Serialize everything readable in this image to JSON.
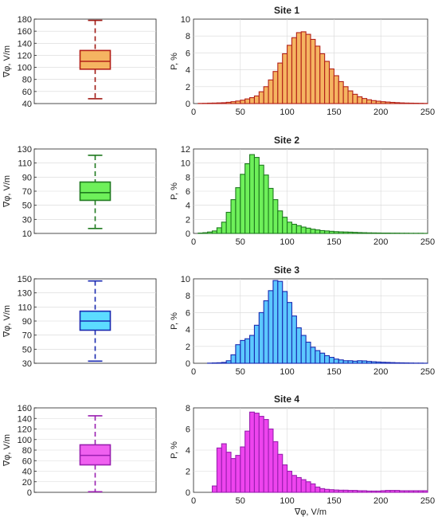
{
  "chart_data": [
    {
      "panel": 1,
      "type": "box",
      "ylabel": "∇φ, V/m",
      "ylim": [
        40,
        180
      ],
      "yticks": [
        40,
        60,
        80,
        100,
        120,
        140,
        160,
        180
      ],
      "color": "#f5b461",
      "edge": "#b32018",
      "whisker_color": "#a01a14",
      "stats": {
        "min": 48,
        "q1": 97,
        "median": 110,
        "q3": 128,
        "max": 178
      }
    },
    {
      "panel": 1,
      "type": "bar",
      "title": "Site 1",
      "ylabel": "P, %",
      "xlabel": "",
      "xlim": [
        0,
        250
      ],
      "ylim": [
        0,
        10
      ],
      "xticks": [
        0,
        50,
        100,
        150,
        200,
        250
      ],
      "yticks": [
        0,
        2,
        4,
        6,
        8,
        10
      ],
      "bin_width": 5,
      "color": "#f5b461",
      "edge": "#b32018",
      "values": [
        0,
        0.02,
        0.03,
        0.05,
        0.06,
        0.08,
        0.1,
        0.15,
        0.22,
        0.3,
        0.4,
        0.55,
        0.7,
        0.9,
        1.4,
        2.0,
        2.8,
        3.8,
        4.8,
        5.9,
        6.9,
        7.8,
        8.4,
        8.5,
        8.2,
        7.6,
        6.8,
        5.9,
        5.0,
        4.1,
        3.3,
        2.6,
        2.0,
        1.5,
        1.1,
        0.8,
        0.6,
        0.45,
        0.35,
        0.28,
        0.22,
        0.18,
        0.14,
        0.11,
        0.08,
        0.06,
        0.05,
        0.04,
        0.03,
        0.02
      ]
    },
    {
      "panel": 2,
      "type": "box",
      "ylabel": "∇φ, V/m",
      "ylim": [
        10,
        130
      ],
      "yticks": [
        10,
        30,
        50,
        70,
        90,
        110,
        130
      ],
      "color": "#6ef05a",
      "edge": "#1f7a1f",
      "whisker_color": "#1f7a1f",
      "stats": {
        "min": 17,
        "q1": 57,
        "median": 68,
        "q3": 83,
        "max": 121
      }
    },
    {
      "panel": 2,
      "type": "bar",
      "title": "Site 2",
      "ylabel": "P, %",
      "xlabel": "",
      "xlim": [
        0,
        250
      ],
      "ylim": [
        0,
        12
      ],
      "xticks": [
        0,
        50,
        100,
        150,
        200,
        250
      ],
      "yticks": [
        0,
        2,
        4,
        6,
        8,
        10,
        12
      ],
      "bin_width": 5,
      "color": "#6ef05a",
      "edge": "#1f7a1f",
      "values": [
        0,
        0.05,
        0.1,
        0.2,
        0.35,
        0.8,
        1.6,
        3.0,
        4.8,
        6.5,
        8.4,
        9.9,
        11.2,
        10.8,
        9.7,
        8.3,
        6.4,
        4.8,
        3.2,
        2.3,
        1.6,
        1.3,
        1.1,
        0.9,
        0.75,
        0.6,
        0.5,
        0.4,
        0.35,
        0.3,
        0.25,
        0.22,
        0.2,
        0.18,
        0.15,
        0.12,
        0.1,
        0.08,
        0.07,
        0.06,
        0.05,
        0.05,
        0.04,
        0.04,
        0.03,
        0.03,
        0.02,
        0.02,
        0.02,
        0.01
      ]
    },
    {
      "panel": 3,
      "type": "box",
      "ylabel": "∇φ, V/m",
      "ylim": [
        30,
        150
      ],
      "yticks": [
        30,
        50,
        70,
        90,
        110,
        130,
        150
      ],
      "color": "#5cdcff",
      "edge": "#1a2ab0",
      "whisker_color": "#1a2ab0",
      "stats": {
        "min": 33,
        "q1": 77,
        "median": 90,
        "q3": 104,
        "max": 147
      }
    },
    {
      "panel": 3,
      "type": "bar",
      "title": "Site 3",
      "ylabel": "P, %",
      "xlabel": "",
      "xlim": [
        0,
        250
      ],
      "ylim": [
        0,
        10
      ],
      "xticks": [
        0,
        50,
        100,
        150,
        200,
        250
      ],
      "yticks": [
        0,
        2,
        4,
        6,
        8,
        10
      ],
      "bin_width": 5,
      "color": "#5cc8ff",
      "edge": "#1a2ab0",
      "values": [
        0,
        0,
        0,
        0.02,
        0.04,
        0.06,
        0.1,
        0.3,
        1.0,
        2.2,
        2.7,
        2.9,
        3.3,
        4.5,
        6.0,
        7.4,
        8.6,
        9.8,
        9.7,
        8.5,
        7.2,
        5.6,
        4.2,
        3.3,
        2.5,
        1.9,
        1.5,
        1.2,
        0.9,
        0.7,
        0.5,
        0.4,
        0.3,
        0.3,
        0.25,
        0.3,
        0.28,
        0.22,
        0.18,
        0.15,
        0.12,
        0.1,
        0.08,
        0.06,
        0.05,
        0.04,
        0.03,
        0.02,
        0.02,
        0.01
      ]
    },
    {
      "panel": 4,
      "type": "box",
      "ylabel": "∇φ, V/m",
      "ylim": [
        0,
        160
      ],
      "yticks": [
        0,
        20,
        40,
        60,
        80,
        100,
        120,
        140,
        160
      ],
      "color": "#f060f0",
      "edge": "#9a1fb0",
      "whisker_color": "#9a1fb0",
      "stats": {
        "min": 1,
        "q1": 52,
        "median": 70,
        "q3": 90,
        "max": 145
      }
    },
    {
      "panel": 4,
      "type": "bar",
      "title": "Site 4",
      "ylabel": "P, %",
      "xlabel": "∇φ, V/m",
      "xlim": [
        0,
        250
      ],
      "ylim": [
        0,
        8
      ],
      "xticks": [
        0,
        50,
        100,
        150,
        200,
        250
      ],
      "yticks": [
        0,
        2,
        4,
        6,
        8
      ],
      "bin_width": 5,
      "color": "#ee44ee",
      "edge": "#9a1fb0",
      "values": [
        0,
        0,
        0,
        0,
        0.6,
        4.2,
        4.6,
        3.8,
        3.2,
        3.5,
        4.3,
        5.8,
        7.6,
        7.5,
        7.2,
        6.9,
        6.0,
        4.8,
        3.6,
        2.6,
        2.0,
        1.6,
        1.4,
        1.2,
        1.0,
        0.8,
        0.5,
        0.35,
        0.28,
        0.25,
        0.22,
        0.2,
        0.2,
        0.18,
        0.18,
        0.15,
        0.15,
        0.12,
        0.12,
        0.12,
        0.15,
        0.18,
        0.18,
        0.18,
        0.15,
        0.15,
        0.15,
        0.15,
        0.15,
        0.15
      ]
    }
  ]
}
